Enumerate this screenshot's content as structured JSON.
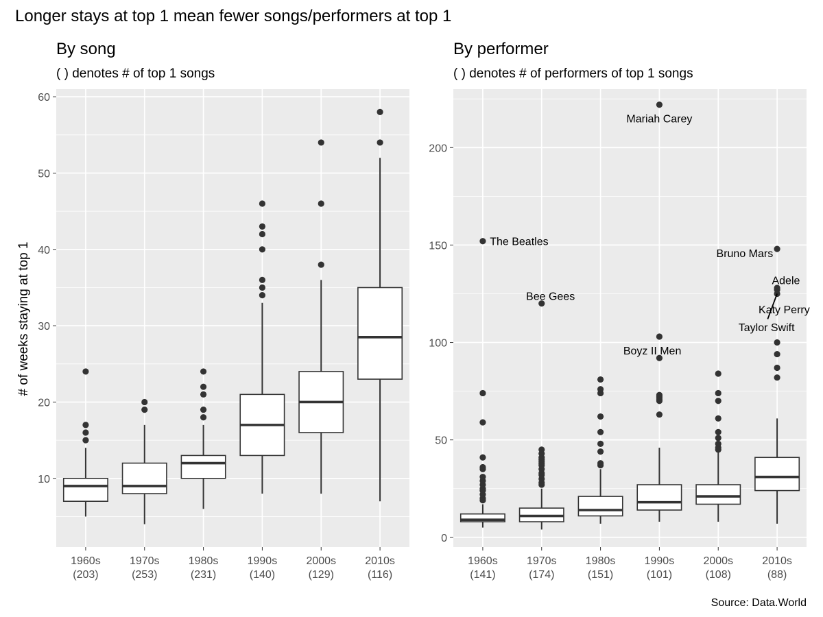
{
  "title": "Longer stays at top 1 mean fewer songs/performers at top 1",
  "caption": "Source: Data.World",
  "colors": {
    "panel_bg": "#ebebeb",
    "grid_major": "#ffffff",
    "box_fill": "#ffffff",
    "box_stroke": "#333333",
    "point": "#333333",
    "tick_text": "#4d4d4d"
  },
  "chart_data": [
    {
      "type": "boxplot",
      "title": "By song",
      "subtitle": "( ) denotes # of top 1 songs",
      "ylabel": "# of weeks staying at top 1",
      "ylim": [
        1,
        61
      ],
      "yticks": [
        10,
        20,
        30,
        40,
        50,
        60
      ],
      "grid": true,
      "categories": [
        "1960s",
        "1970s",
        "1980s",
        "1990s",
        "2000s",
        "2010s"
      ],
      "counts": [
        "(203)",
        "(253)",
        "(231)",
        "(140)",
        "(129)",
        "(116)"
      ],
      "boxes": [
        {
          "min": 5,
          "q1": 7,
          "median": 9,
          "q3": 10,
          "max": 14,
          "outliers": [
            15,
            16,
            17,
            24
          ]
        },
        {
          "min": 4,
          "q1": 8,
          "median": 9,
          "q3": 12,
          "max": 17,
          "outliers": [
            19,
            20
          ]
        },
        {
          "min": 6,
          "q1": 10,
          "median": 12,
          "q3": 13,
          "max": 17,
          "outliers": [
            18,
            19,
            21,
            22,
            24
          ]
        },
        {
          "min": 8,
          "q1": 13,
          "median": 17,
          "q3": 21,
          "max": 33,
          "outliers": [
            34,
            35,
            36,
            40,
            42,
            43,
            46
          ]
        },
        {
          "min": 8,
          "q1": 16,
          "median": 20,
          "q3": 24,
          "max": 36,
          "outliers": [
            38,
            46,
            54
          ]
        },
        {
          "min": 7,
          "q1": 23,
          "median": 28.5,
          "q3": 35,
          "max": 52,
          "outliers": [
            54,
            58
          ]
        }
      ],
      "annotations": []
    },
    {
      "type": "boxplot",
      "title": "By performer",
      "subtitle": "( ) denotes # of performers of top 1 songs",
      "ylabel": "",
      "ylim": [
        -5,
        230
      ],
      "yticks": [
        0,
        50,
        100,
        150,
        200
      ],
      "grid": true,
      "categories": [
        "1960s",
        "1970s",
        "1980s",
        "1990s",
        "2000s",
        "2010s"
      ],
      "counts": [
        "(141)",
        "(174)",
        "(151)",
        "(101)",
        "(108)",
        "(88)"
      ],
      "boxes": [
        {
          "min": 5,
          "q1": 8,
          "median": 9,
          "q3": 12,
          "max": 17,
          "outliers": [
            19,
            20,
            22,
            24,
            25,
            27,
            29,
            31,
            35,
            36,
            41,
            59,
            74,
            152
          ]
        },
        {
          "min": 4,
          "q1": 8,
          "median": 11,
          "q3": 15,
          "max": 25,
          "outliers": [
            27,
            28,
            30,
            32,
            33,
            35,
            37,
            38,
            39,
            40,
            41,
            43,
            45,
            120
          ]
        },
        {
          "min": 7,
          "q1": 11,
          "median": 14,
          "q3": 21,
          "max": 35,
          "outliers": [
            37,
            38,
            44,
            48,
            54,
            62,
            74,
            76,
            81
          ]
        },
        {
          "min": 8,
          "q1": 14,
          "median": 18,
          "q3": 27,
          "max": 46,
          "outliers": [
            63,
            70,
            71,
            72,
            73,
            92,
            103,
            222
          ]
        },
        {
          "min": 8,
          "q1": 17,
          "median": 21,
          "q3": 27,
          "max": 44,
          "outliers": [
            45,
            46,
            48,
            51,
            54,
            61,
            70,
            74,
            84
          ]
        },
        {
          "min": 7,
          "q1": 24,
          "median": 31,
          "q3": 41,
          "max": 61,
          "outliers": [
            82,
            87,
            94,
            100,
            125,
            127,
            128,
            148
          ]
        }
      ],
      "annotations": [
        {
          "label": "The Beatles",
          "category": "1960s",
          "value": 152,
          "label_x": "1960s",
          "label_value": 152,
          "anchor": "start",
          "dx": 0.12
        },
        {
          "label": "Bee Gees",
          "category": "1970s",
          "value": 120,
          "label_x": "1970s",
          "label_value": 124,
          "anchor": "middle",
          "dx": 0.15
        },
        {
          "label": "Mariah Carey",
          "category": "1990s",
          "value": 222,
          "label_x": "1990s",
          "label_value": 215,
          "anchor": "middle",
          "dx": 0.0
        },
        {
          "label": "Boyz II Men",
          "category": "1990s",
          "value": 103,
          "label_x": "1990s",
          "label_value": 96,
          "anchor": "middle",
          "dx": -0.12
        },
        {
          "label": "Bruno Mars",
          "category": "2010s",
          "value": 148,
          "label_x": "2010s",
          "label_value": 146,
          "anchor": "middle",
          "dx": -0.55
        },
        {
          "label": "Adele",
          "category": "2010s",
          "value": 128,
          "label_x": "2010s",
          "label_value": 132,
          "anchor": "middle",
          "dx": 0.15
        },
        {
          "label": "Katy Perry",
          "category": "2010s",
          "value": 127,
          "label_x": "2010s",
          "label_value": 117,
          "anchor": "middle",
          "dx": 0.12
        },
        {
          "label": "Taylor Swift",
          "category": "2010s",
          "value": 125,
          "label_x": "2010s",
          "label_value": 108,
          "anchor": "middle",
          "dx": -0.18,
          "leader": true
        }
      ]
    }
  ]
}
